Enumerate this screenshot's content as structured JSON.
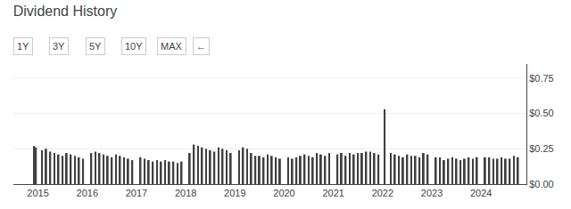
{
  "chart_data": {
    "type": "bar",
    "title": "Dividend History",
    "annotations": [
      "1Y",
      "3Y",
      "5Y",
      "10Y",
      "MAX",
      "←"
    ],
    "color": "#404040",
    "x": [
      2014.9167,
      2014.9583,
      2015.0833,
      2015.1667,
      2015.25,
      2015.3333,
      2015.4167,
      2015.5,
      2015.5833,
      2015.6667,
      2015.75,
      2015.8333,
      2015.9167,
      2016.0833,
      2016.1667,
      2016.25,
      2016.3333,
      2016.4167,
      2016.5,
      2016.5833,
      2016.6667,
      2016.75,
      2016.8333,
      2016.9167,
      2017.0833,
      2017.1667,
      2017.25,
      2017.3333,
      2017.4167,
      2017.5,
      2017.5833,
      2017.6667,
      2017.75,
      2017.8333,
      2017.9167,
      2018.0833,
      2018.1667,
      2018.25,
      2018.3333,
      2018.4167,
      2018.5,
      2018.5833,
      2018.6667,
      2018.75,
      2018.8333,
      2018.9167,
      2019.0833,
      2019.1667,
      2019.25,
      2019.3333,
      2019.4167,
      2019.5,
      2019.5833,
      2019.6667,
      2019.75,
      2019.8333,
      2019.9167,
      2020.0833,
      2020.1667,
      2020.25,
      2020.3333,
      2020.4167,
      2020.5,
      2020.5833,
      2020.6667,
      2020.75,
      2020.8333,
      2020.9167,
      2021.0833,
      2021.1667,
      2021.25,
      2021.3333,
      2021.4167,
      2021.5,
      2021.5833,
      2021.6667,
      2021.75,
      2021.8333,
      2021.9167,
      2022.0417,
      2022.1667,
      2022.25,
      2022.3333,
      2022.4167,
      2022.5,
      2022.5833,
      2022.6667,
      2022.75,
      2022.8333,
      2022.9167,
      2023.0833,
      2023.1667,
      2023.25,
      2023.3333,
      2023.4167,
      2023.5,
      2023.5833,
      2023.6667,
      2023.75,
      2023.8333,
      2023.9167,
      2024.0833,
      2024.1667,
      2024.25,
      2024.3333,
      2024.4167,
      2024.5,
      2024.5833,
      2024.6667,
      2024.75
    ],
    "values": [
      0.27,
      0.26,
      0.24,
      0.25,
      0.23,
      0.22,
      0.21,
      0.2,
      0.22,
      0.21,
      0.2,
      0.19,
      0.18,
      0.22,
      0.23,
      0.22,
      0.21,
      0.2,
      0.19,
      0.21,
      0.2,
      0.19,
      0.18,
      0.17,
      0.19,
      0.18,
      0.17,
      0.16,
      0.17,
      0.16,
      0.17,
      0.16,
      0.16,
      0.15,
      0.16,
      0.22,
      0.28,
      0.27,
      0.26,
      0.25,
      0.24,
      0.23,
      0.26,
      0.25,
      0.24,
      0.22,
      0.24,
      0.26,
      0.25,
      0.22,
      0.2,
      0.2,
      0.19,
      0.21,
      0.2,
      0.19,
      0.18,
      0.19,
      0.18,
      0.19,
      0.2,
      0.21,
      0.2,
      0.19,
      0.22,
      0.21,
      0.2,
      0.22,
      0.21,
      0.22,
      0.2,
      0.22,
      0.21,
      0.22,
      0.22,
      0.23,
      0.23,
      0.22,
      0.21,
      0.53,
      0.22,
      0.21,
      0.2,
      0.19,
      0.21,
      0.2,
      0.2,
      0.19,
      0.22,
      0.21,
      0.19,
      0.19,
      0.17,
      0.18,
      0.19,
      0.18,
      0.17,
      0.18,
      0.19,
      0.18,
      0.19,
      0.19,
      0.19,
      0.18,
      0.18,
      0.19,
      0.18,
      0.18,
      0.2,
      0.19
    ],
    "xlim": [
      2014.5,
      2024.92
    ],
    "xticks": [
      2015,
      2016,
      2017,
      2018,
      2019,
      2020,
      2021,
      2022,
      2023,
      2024
    ],
    "ylim": [
      0,
      0.85
    ],
    "yticks": [
      {
        "value": 0.0,
        "label": "$0.00"
      },
      {
        "value": 0.25,
        "label": "$0.25"
      },
      {
        "value": 0.5,
        "label": "$0.50"
      },
      {
        "value": 0.75,
        "label": "$0.75"
      }
    ],
    "grid": true
  }
}
